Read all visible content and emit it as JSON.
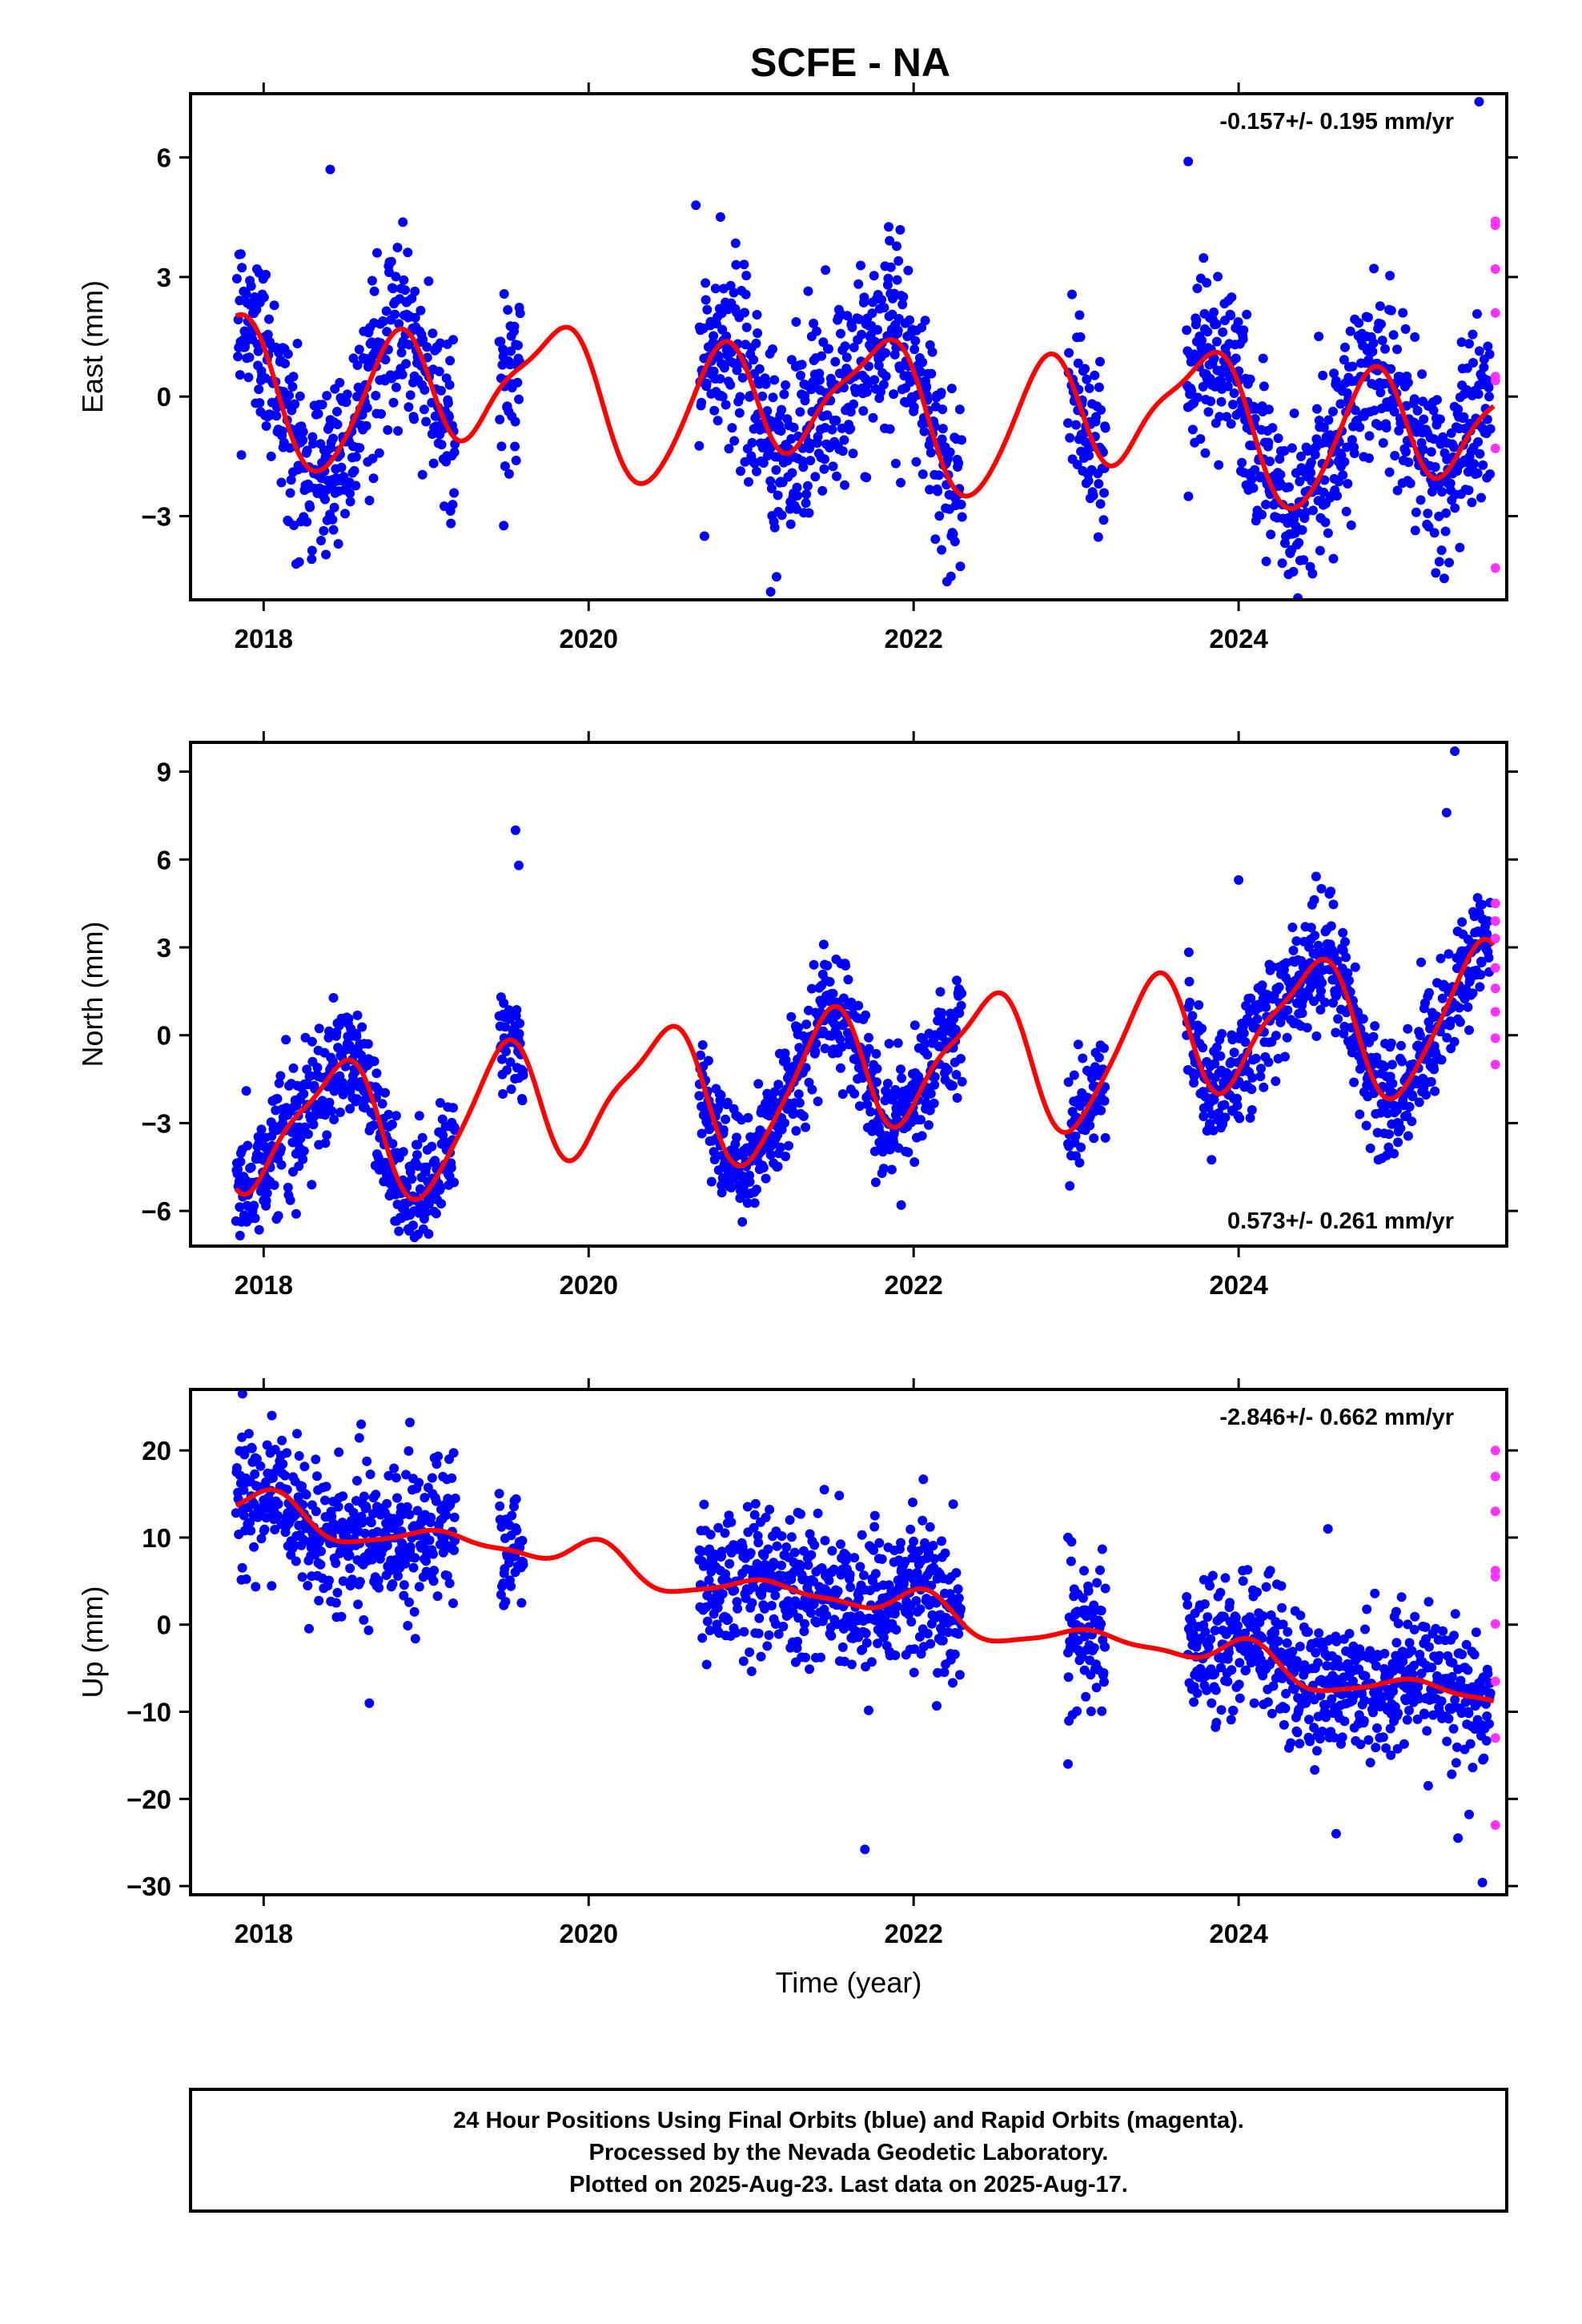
{
  "title": "SCFE - NA",
  "colors": {
    "final": "#0000ff",
    "rapid": "#ff33ff",
    "model": "#ff0000"
  },
  "chart_data": [
    {
      "type": "scatter",
      "panel": "east",
      "ylabel": "East (mm)",
      "xlabel": "",
      "rate_label": "-0.157+/- 0.195 mm/yr",
      "rate_position": "top-right",
      "xlim": [
        2017.55,
        2025.65
      ],
      "ylim": [
        -5.1,
        7.6
      ],
      "yticks": [
        -3,
        0,
        3,
        6
      ],
      "ytick_labels": [
        "−3",
        "0",
        "3",
        "6"
      ],
      "xticks": [
        2018,
        2020,
        2022,
        2024
      ],
      "xtick_labels": [
        "2018",
        "2020",
        "2022",
        "2024"
      ],
      "data_segments": [
        [
          2017.83,
          2019.18
        ],
        [
          2019.45,
          2019.58
        ],
        [
          2020.68,
          2022.3
        ],
        [
          2022.95,
          2023.18
        ],
        [
          2023.68,
          2025.55
        ]
      ],
      "model": {
        "offset": 0.3,
        "trend": -0.157,
        "harmonics": [
          [
            -1.4,
            0.6
          ],
          [
            -0.2,
            0.15
          ]
        ],
        "wobble": [
          0.6,
          0.3,
          3.1
        ]
      },
      "noise_sd": 1.15,
      "final_outliers": [
        [
          2018.41,
          5.7
        ],
        [
          2018.2,
          -4.2
        ],
        [
          2021.12,
          -4.9
        ],
        [
          2025.48,
          7.4
        ],
        [
          2023.69,
          5.9
        ],
        [
          2020.66,
          4.8
        ]
      ],
      "rapid": [
        [
          2025.58,
          4.4
        ],
        [
          2025.58,
          4.3
        ],
        [
          2025.58,
          3.2
        ],
        [
          2025.58,
          2.1
        ],
        [
          2025.58,
          0.5
        ],
        [
          2025.58,
          0.4
        ],
        [
          2025.58,
          -1.3
        ],
        [
          2025.58,
          -4.3
        ]
      ]
    },
    {
      "type": "scatter",
      "panel": "north",
      "ylabel": "North (mm)",
      "xlabel": "",
      "rate_label": "0.573+/- 0.261 mm/yr",
      "rate_position": "bottom-right",
      "xlim": [
        2017.55,
        2025.65
      ],
      "ylim": [
        -7.2,
        10.0
      ],
      "yticks": [
        -6,
        -3,
        0,
        3,
        6,
        9
      ],
      "ytick_labels": [
        "−6",
        "−3",
        "0",
        "3",
        "6",
        "9"
      ],
      "xticks": [
        2018,
        2020,
        2022,
        2024
      ],
      "xtick_labels": [
        "2018",
        "2020",
        "2022",
        "2024"
      ],
      "data_segments": [
        [
          2017.83,
          2019.18
        ],
        [
          2019.45,
          2019.6
        ],
        [
          2020.68,
          2022.3
        ],
        [
          2022.95,
          2023.18
        ],
        [
          2023.68,
          2025.55
        ]
      ],
      "model": {
        "offset": -3.4,
        "trend": 0.573,
        "harmonics": [
          [
            0.5,
            -2.1
          ],
          [
            0.4,
            0.2
          ]
        ],
        "wobble": [
          0.5,
          0.25,
          1.3
        ]
      },
      "noise_sd": 1.0,
      "final_outliers": [
        [
          2019.55,
          7.0
        ],
        [
          2019.57,
          5.8
        ],
        [
          2025.33,
          9.7
        ],
        [
          2025.28,
          7.6
        ],
        [
          2018.95,
          -6.8
        ],
        [
          2018.2,
          -6.1
        ],
        [
          2024.0,
          5.3
        ]
      ],
      "rapid": [
        [
          2025.58,
          4.5
        ],
        [
          2025.58,
          3.9
        ],
        [
          2025.58,
          3.3
        ],
        [
          2025.58,
          2.3
        ],
        [
          2025.58,
          1.6
        ],
        [
          2025.58,
          0.8
        ],
        [
          2025.58,
          -0.1
        ],
        [
          2025.58,
          -1.0
        ]
      ]
    },
    {
      "type": "scatter",
      "panel": "up",
      "ylabel": "Up (mm)",
      "xlabel": "Time (year)",
      "rate_label": "-2.846+/- 0.662 mm/yr",
      "rate_position": "top-right",
      "xlim": [
        2017.55,
        2025.65
      ],
      "ylim": [
        -31,
        27
      ],
      "yticks": [
        -30,
        -20,
        -10,
        0,
        10,
        20
      ],
      "ytick_labels": [
        "−30",
        "−20",
        "−10",
        "0",
        "10",
        "20"
      ],
      "xticks": [
        2018,
        2020,
        2022,
        2024
      ],
      "xtick_labels": [
        "2018",
        "2020",
        "2022",
        "2024"
      ],
      "data_segments": [
        [
          2017.83,
          2019.18
        ],
        [
          2019.45,
          2019.6
        ],
        [
          2020.68,
          2022.3
        ],
        [
          2022.95,
          2023.18
        ],
        [
          2023.68,
          2025.55
        ]
      ],
      "model": {
        "offset": 13.0,
        "trend": -2.846,
        "harmonics": [
          [
            0.5,
            1.3
          ],
          [
            0.3,
            0.2
          ]
        ],
        "wobble": [
          0.8,
          0.5,
          2.4
        ]
      },
      "noise_sd": 4.0,
      "final_outliers": [
        [
          2017.87,
          26.5
        ],
        [
          2018.05,
          24.0
        ],
        [
          2018.6,
          23.0
        ],
        [
          2018.9,
          23.2
        ],
        [
          2021.7,
          -25.8
        ],
        [
          2025.5,
          -29.6
        ],
        [
          2024.6,
          -24.0
        ],
        [
          2025.35,
          -24.5
        ],
        [
          2018.65,
          -9.0
        ],
        [
          2022.95,
          10.0
        ],
        [
          2022.95,
          -16.0
        ],
        [
          2024.55,
          11.0
        ],
        [
          2021.45,
          15.5
        ]
      ],
      "rapid": [
        [
          2025.58,
          20.0
        ],
        [
          2025.58,
          17.0
        ],
        [
          2025.58,
          13.0
        ],
        [
          2025.58,
          6.2
        ],
        [
          2025.58,
          5.5
        ],
        [
          2025.58,
          0.1
        ],
        [
          2025.58,
          -6.5
        ],
        [
          2025.58,
          -13.0
        ],
        [
          2025.58,
          -23.0
        ]
      ]
    }
  ],
  "footer": {
    "line1": "24 Hour Positions Using Final Orbits (blue) and Rapid Orbits (magenta).",
    "line2": "Processed by the Nevada Geodetic Laboratory.",
    "line3": "Plotted on 2025-Aug-23. Last data on 2025-Aug-17."
  }
}
